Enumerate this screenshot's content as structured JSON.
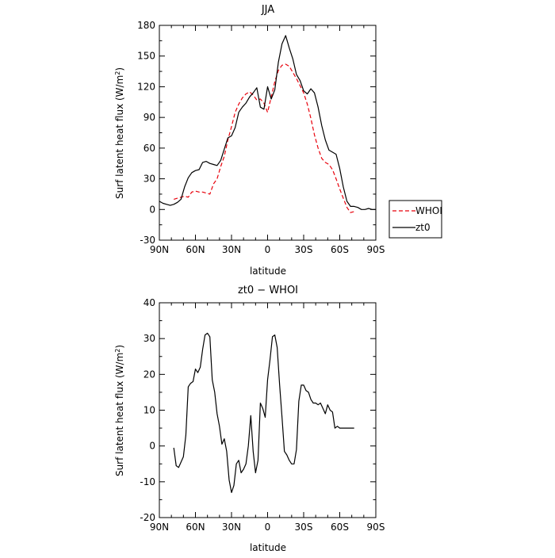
{
  "chart_data": [
    {
      "type": "line",
      "title": "JJA",
      "xlabel": "latitude",
      "ylabel": "Surf latent heat flux (W/m",
      "ylabel_sup": "2",
      "ylabel_end": ")",
      "xlim": [
        90,
        -90
      ],
      "ylim": [
        -30,
        180
      ],
      "x_tick_values": [
        90,
        60,
        30,
        0,
        -30,
        -60,
        -90
      ],
      "x_tick_labels": [
        "90N",
        "60N",
        "30N",
        "0",
        "30S",
        "60S",
        "90S"
      ],
      "y_tick_values": [
        -30,
        0,
        30,
        60,
        90,
        120,
        150,
        180
      ],
      "y_tick_labels": [
        "-30",
        "0",
        "30",
        "60",
        "90",
        "120",
        "150",
        "180"
      ],
      "legend_position": "right",
      "series": [
        {
          "name": "WHOI",
          "color": "#e8000b",
          "dash": "dashed",
          "x": [
            78,
            75,
            72,
            69,
            66,
            63,
            60,
            57,
            54,
            51,
            48,
            45,
            42,
            39,
            36,
            33,
            30,
            27,
            24,
            21,
            18,
            15,
            12,
            9,
            6,
            3,
            0,
            -3,
            -6,
            -9,
            -12,
            -15,
            -18,
            -21,
            -24,
            -27,
            -30,
            -33,
            -36,
            -39,
            -42,
            -45,
            -48,
            -51,
            -54,
            -57,
            -60,
            -63,
            -66,
            -69,
            -72
          ],
          "y": [
            10,
            11,
            12,
            13,
            12,
            17,
            18,
            17,
            17,
            16,
            15,
            25,
            30,
            42,
            52,
            68,
            81,
            95,
            103,
            109,
            113,
            115,
            112,
            107,
            108,
            104,
            95,
            110,
            125,
            136,
            141,
            142,
            140,
            134,
            128,
            121,
            114,
            103,
            89,
            73,
            60,
            50,
            46,
            44,
            39,
            30,
            20,
            11,
            2,
            -3,
            -2
          ]
        },
        {
          "name": "zt0",
          "color": "#000000",
          "dash": "solid",
          "x": [
            90,
            87,
            84,
            81,
            78,
            75,
            72,
            69,
            66,
            63,
            60,
            57,
            54,
            51,
            48,
            45,
            42,
            39,
            36,
            33,
            30,
            27,
            24,
            21,
            18,
            15,
            12,
            9,
            6,
            3,
            0,
            -3,
            -6,
            -9,
            -12,
            -15,
            -18,
            -21,
            -24,
            -27,
            -30,
            -33,
            -36,
            -39,
            -42,
            -45,
            -48,
            -51,
            -54,
            -57,
            -60,
            -63,
            -66,
            -69,
            -72,
            -75,
            -78,
            -81,
            -84,
            -87,
            -90
          ],
          "y": [
            8,
            6,
            5,
            4,
            5,
            7,
            10,
            22,
            31,
            36,
            38,
            39,
            46,
            47,
            45,
            44,
            43,
            48,
            59,
            70,
            72,
            80,
            95,
            100,
            104,
            110,
            114,
            119,
            100,
            98,
            120,
            108,
            117,
            144,
            162,
            170,
            158,
            147,
            132,
            126,
            116,
            113,
            118,
            114,
            100,
            82,
            68,
            58,
            56,
            54,
            40,
            22,
            8,
            3,
            3,
            2,
            0,
            0,
            1,
            0,
            0
          ]
        }
      ]
    },
    {
      "type": "line",
      "title": "zt0 − WHOI",
      "xlabel": "latitude",
      "ylabel": "Surf latent heat flux (W/m",
      "ylabel_sup": "2",
      "ylabel_end": ")",
      "xlim": [
        90,
        -90
      ],
      "ylim": [
        -20,
        40
      ],
      "x_tick_values": [
        90,
        60,
        30,
        0,
        -30,
        -60,
        -90
      ],
      "x_tick_labels": [
        "90N",
        "60N",
        "30N",
        "0",
        "30S",
        "60S",
        "90S"
      ],
      "y_tick_values": [
        -20,
        -10,
        0,
        10,
        20,
        30,
        40
      ],
      "y_tick_labels": [
        "-20",
        "-10",
        "0",
        "10",
        "20",
        "30",
        "40"
      ],
      "series": [
        {
          "name": "",
          "color": "#000000",
          "dash": "solid",
          "x": [
            78,
            76,
            74,
            72,
            70,
            68,
            66,
            64,
            62,
            60,
            58,
            56,
            54,
            52,
            50,
            48,
            46,
            44,
            42,
            40,
            38,
            36,
            34,
            32,
            30,
            28,
            26,
            24,
            22,
            20,
            18,
            16,
            14,
            12,
            10,
            8,
            6,
            4,
            2,
            0,
            -2,
            -4,
            -6,
            -8,
            -10,
            -12,
            -14,
            -16,
            -18,
            -20,
            -22,
            -24,
            -26,
            -28,
            -30,
            -32,
            -34,
            -36,
            -38,
            -40,
            -42,
            -44,
            -46,
            -48,
            -50,
            -52,
            -54,
            -56,
            -58,
            -60,
            -62,
            -64,
            -66,
            -68,
            -70,
            -72
          ],
          "y": [
            -0.5,
            -5.5,
            -6,
            -4.5,
            -3,
            3,
            16.5,
            17.5,
            18,
            21.5,
            20.5,
            22,
            27,
            31,
            31.5,
            30.5,
            18.5,
            15,
            9,
            5.5,
            0.5,
            2,
            -1.5,
            -9.5,
            -13,
            -11,
            -5,
            -4,
            -7.5,
            -6.5,
            -5,
            0,
            8.5,
            -1.5,
            -7.5,
            -4,
            12,
            10.5,
            8,
            18.5,
            24,
            30.5,
            31,
            27.5,
            17,
            8,
            -1.5,
            -2.5,
            -4,
            -5,
            -5,
            -1,
            12.5,
            17,
            17,
            15.5,
            15,
            13,
            12,
            12,
            11.5,
            12,
            10.5,
            9,
            11.5,
            10,
            9.5,
            5,
            5.5,
            5,
            5,
            5,
            5,
            5,
            5,
            5
          ]
        }
      ]
    }
  ]
}
